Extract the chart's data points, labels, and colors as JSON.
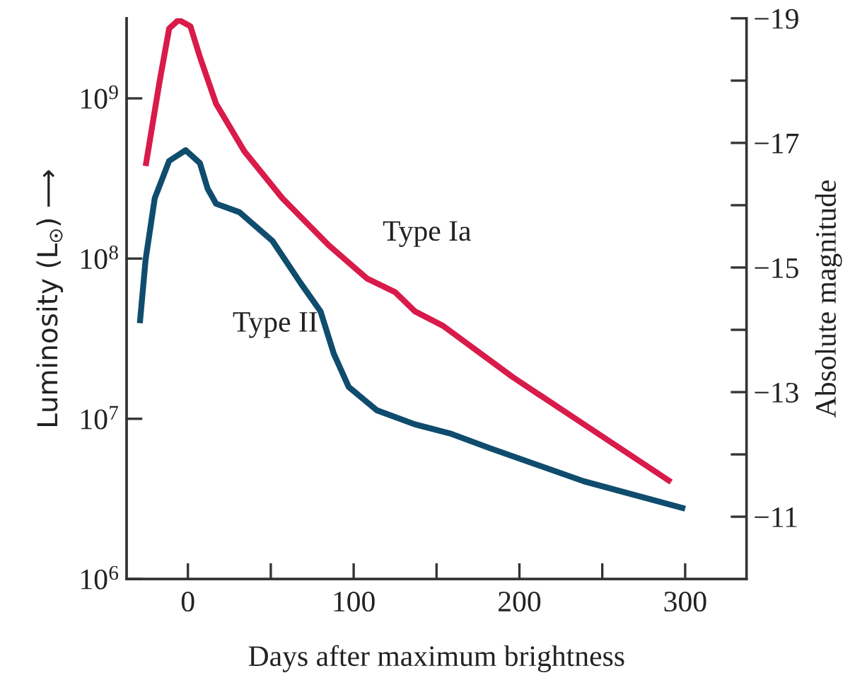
{
  "chart_data": {
    "type": "line",
    "xlabel": "Days after maximum brightness",
    "ylabel": "Luminosity (L$_{☉}$) ⟶",
    "y2label": "Absolute magnitude",
    "log": "y",
    "grid": false,
    "legend": false,
    "marker": "none",
    "line_style": "solid",
    "xlim": [
      -37,
      337
    ],
    "xticks": [
      0,
      {
        "value": 50,
        "label": null
      },
      100,
      {
        "value": 150,
        "label": null
      },
      200,
      {
        "value": 250,
        "label": null
      },
      300
    ],
    "ylim": [
      1000000,
      3160000000
    ],
    "yticks": [
      {
        "value": 1000000,
        "label": "10$^{6}$"
      },
      {
        "value": 10000000,
        "label": "10$^{7}$"
      },
      {
        "value": 100000000,
        "label": "10$^{8}$"
      },
      {
        "value": 1000000000,
        "label": "10$^{9}$"
      }
    ],
    "y2lim": [
      -10,
      -19
    ],
    "y2ticks": [
      -19,
      {
        "value": -18,
        "label": null
      },
      -17,
      {
        "value": -16,
        "label": null
      },
      -15,
      {
        "value": -14,
        "label": null
      },
      -13,
      {
        "value": -12,
        "label": null
      },
      -11
    ],
    "series": [
      {
        "name": "Type Ia",
        "color": "#d81b4a",
        "x": [
          -25.5,
          -17,
          -11.3,
          -5.6,
          1.5,
          7.2,
          17,
          34,
          57,
          85,
          108,
          125,
          137,
          154,
          196,
          239,
          291.5
        ],
        "values": [
          378000000,
          1290000000,
          2730000000,
          3090000000,
          2820000000,
          1820000000,
          925000000,
          468000000,
          238000000,
          121000000,
          75200000,
          61700000,
          46800000,
          38000000,
          18200000,
          9230000,
          4030000
        ]
      },
      {
        "name": "Type II",
        "color": "#0f4c6e",
        "x": [
          -29,
          -25.5,
          -20,
          -11.3,
          -1.4,
          7.2,
          11.9,
          17,
          31,
          51,
          68,
          80,
          88,
          97,
          114,
          137,
          159,
          182,
          239,
          300
        ],
        "values": [
          39500000,
          98900000,
          238000000,
          407000000,
          475000000,
          395000000,
          273000000,
          220000000,
          195000000,
          129000000,
          70300000,
          46900000,
          25500000,
          15800000,
          11300000,
          9230000,
          8050000,
          6560000,
          4070000,
          2750000
        ]
      }
    ]
  }
}
